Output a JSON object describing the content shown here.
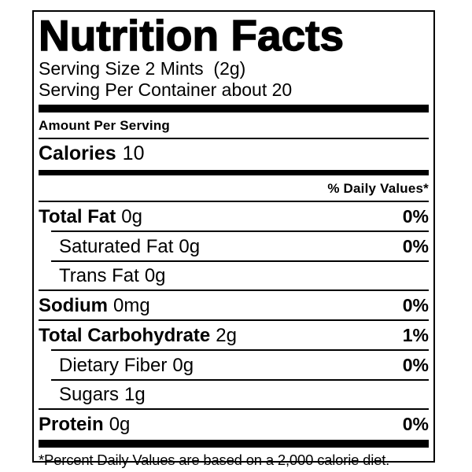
{
  "title": "Nutrition Facts",
  "serving": {
    "size_line": "Serving Size 2 Mints  (2g)",
    "container_line": "Serving Per Container about 20"
  },
  "amount_per_serving_label": "Amount Per Serving",
  "calories": {
    "label": "Calories",
    "value": "10"
  },
  "daily_values_header": "% Daily Values*",
  "nutrient_rows": [
    {
      "label": "Total Fat",
      "amount": "0g",
      "percent": "0%"
    },
    {
      "label": "Saturated Fat",
      "amount": "0g",
      "percent": "0%"
    },
    {
      "label": "Trans Fat",
      "amount": "0g",
      "percent": ""
    },
    {
      "label": "Sodium",
      "amount": "0mg",
      "percent": "0%"
    },
    {
      "label": "Total Carbohydrate",
      "amount": "2g",
      "percent": "1%"
    },
    {
      "label": "Dietary Fiber",
      "amount": "0g",
      "percent": "0%"
    },
    {
      "label": "Sugars",
      "amount": "1g",
      "percent": ""
    },
    {
      "label": "Protein",
      "amount": "0g",
      "percent": "0%"
    }
  ],
  "footnote": "*Percent Daily Values are based on a 2,000 calorie diet.",
  "colors": {
    "text": "#000000",
    "background": "#ffffff",
    "border": "#000000"
  }
}
